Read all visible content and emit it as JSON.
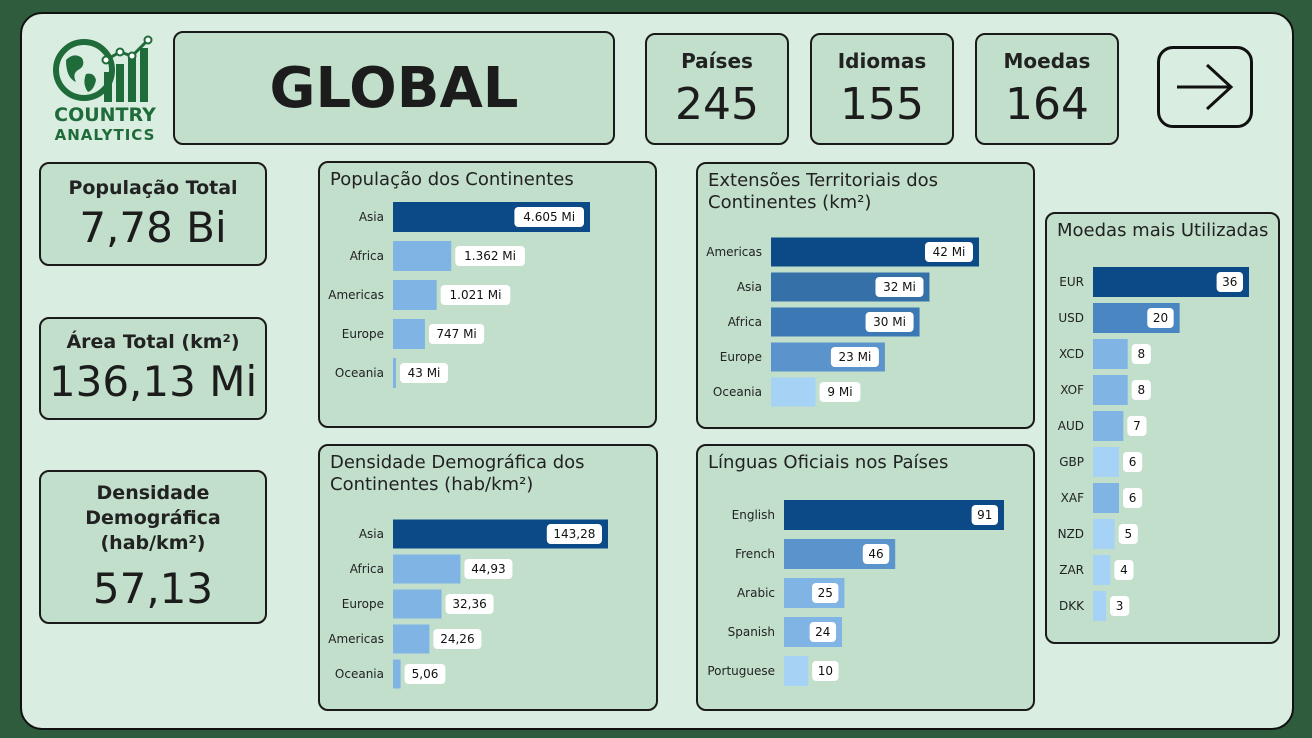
{
  "brand": {
    "line1": "COUNTRY",
    "line2": "ANALYTICS",
    "color": "#1f6b3a"
  },
  "header": {
    "title": "GLOBAL"
  },
  "kpis": {
    "paises": {
      "label": "Países",
      "value": "245"
    },
    "idiomas": {
      "label": "Idiomas",
      "value": "155"
    },
    "moedas": {
      "label": "Moedas",
      "value": "164"
    }
  },
  "nav": {
    "next_icon": "arrow-right-icon"
  },
  "stats": {
    "populacao": {
      "label": "População Total",
      "value": "7,78 Bi"
    },
    "area": {
      "label": "Área Total (km²)",
      "value": "136,13 Mi"
    },
    "densidade": {
      "label1": "Densidade",
      "label2": "Demográfica",
      "label3": "(hab/km²)",
      "value": "57,13"
    }
  },
  "colors": {
    "dark": "#0b4a86",
    "mid": "#3b78b4",
    "light": "#7fb4e4",
    "lighter": "#a6d2f5"
  },
  "chart_data": [
    {
      "id": "pop",
      "type": "bar",
      "orientation": "horizontal",
      "title": "População dos Continentes",
      "categories": [
        "Asia",
        "Africa",
        "Americas",
        "Europe",
        "Oceania"
      ],
      "values": [
        4605,
        1362,
        1021,
        747,
        43
      ],
      "labels": [
        "4.605 Mi",
        "1.362 Mi",
        "1.021 Mi",
        "747 Mi",
        "43 Mi"
      ],
      "colors": [
        "#0b4a86",
        "#7fb4e4",
        "#7fb4e4",
        "#7fb4e4",
        "#7fb4e4"
      ]
    },
    {
      "id": "ext",
      "type": "bar",
      "orientation": "horizontal",
      "title": "Extensões Territoriais dos Continentes (km²)",
      "categories": [
        "Americas",
        "Asia",
        "Africa",
        "Europe",
        "Oceania"
      ],
      "values": [
        42,
        32,
        30,
        23,
        9
      ],
      "labels": [
        "42 Mi",
        "32 Mi",
        "30 Mi",
        "23 Mi",
        "9 Mi"
      ],
      "colors": [
        "#0b4a86",
        "#3570a8",
        "#3b78b4",
        "#5b93cc",
        "#a6d2f5"
      ]
    },
    {
      "id": "dens",
      "type": "bar",
      "orientation": "horizontal",
      "title": "Densidade Demográfica dos Continentes (hab/km²)",
      "categories": [
        "Asia",
        "Africa",
        "Europe",
        "Americas",
        "Oceania"
      ],
      "values": [
        143.28,
        44.93,
        32.36,
        24.26,
        5.06
      ],
      "labels": [
        "143,28",
        "44,93",
        "32,36",
        "24,26",
        "5,06"
      ],
      "colors": [
        "#0b4a86",
        "#7fb4e4",
        "#7fb4e4",
        "#7fb4e4",
        "#7fb4e4"
      ]
    },
    {
      "id": "ling",
      "type": "bar",
      "orientation": "horizontal",
      "title": "Línguas Oficiais nos Países",
      "categories": [
        "English",
        "French",
        "Arabic",
        "Spanish",
        "Portuguese"
      ],
      "values": [
        91,
        46,
        25,
        24,
        10
      ],
      "labels": [
        "91",
        "46",
        "25",
        "24",
        "10"
      ],
      "colors": [
        "#0b4a86",
        "#5b93cc",
        "#7fb4e4",
        "#7fb4e4",
        "#a6d2f5"
      ]
    },
    {
      "id": "moe",
      "type": "bar",
      "orientation": "horizontal",
      "title": "Moedas mais Utilizadas",
      "categories": [
        "EUR",
        "USD",
        "XCD",
        "XOF",
        "AUD",
        "GBP",
        "XAF",
        "NZD",
        "ZAR",
        "DKK"
      ],
      "values": [
        36,
        20,
        8,
        8,
        7,
        6,
        6,
        5,
        4,
        3
      ],
      "labels": [
        "36",
        "20",
        "8",
        "8",
        "7",
        "6",
        "6",
        "5",
        "4",
        "3"
      ],
      "colors": [
        "#0b4a86",
        "#4a86c2",
        "#7fb4e4",
        "#7fb4e4",
        "#7fb4e4",
        "#a6d2f5",
        "#7fb4e4",
        "#a6d2f5",
        "#a6d2f5",
        "#a6d2f5"
      ]
    }
  ]
}
